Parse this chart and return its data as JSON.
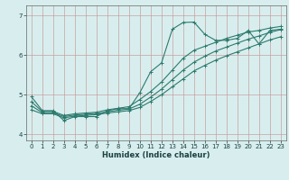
{
  "xlabel": "Humidex (Indice chaleur)",
  "background_color": "#d8eeee",
  "grid_color": "#c8a8a8",
  "line_color": "#2d7a6e",
  "xlim": [
    -0.5,
    23.5
  ],
  "ylim": [
    3.85,
    7.25
  ],
  "yticks": [
    4,
    5,
    6,
    7
  ],
  "xticks": [
    0,
    1,
    2,
    3,
    4,
    5,
    6,
    7,
    8,
    9,
    10,
    11,
    12,
    13,
    14,
    15,
    16,
    17,
    18,
    19,
    20,
    21,
    22,
    23
  ],
  "line1_x": [
    0,
    1,
    2,
    3,
    4,
    5,
    6,
    7,
    8,
    9,
    10,
    11,
    12,
    13,
    14,
    15,
    16,
    17,
    18,
    19,
    20,
    21,
    22,
    23
  ],
  "line1_y": [
    4.95,
    4.6,
    4.6,
    4.35,
    4.45,
    4.45,
    4.45,
    4.6,
    4.65,
    4.65,
    5.05,
    5.58,
    5.8,
    6.65,
    6.82,
    6.83,
    6.52,
    6.37,
    6.37,
    6.42,
    6.62,
    6.28,
    6.62,
    6.65
  ],
  "line2_x": [
    0,
    1,
    2,
    3,
    4,
    5,
    6,
    7,
    8,
    9,
    10,
    11,
    12,
    13,
    14,
    15,
    16,
    17,
    18,
    19,
    20,
    21,
    22,
    23
  ],
  "line2_y": [
    4.82,
    4.58,
    4.58,
    4.48,
    4.52,
    4.54,
    4.56,
    4.62,
    4.66,
    4.7,
    4.88,
    5.08,
    5.32,
    5.62,
    5.92,
    6.12,
    6.22,
    6.32,
    6.42,
    6.5,
    6.58,
    6.62,
    6.68,
    6.72
  ],
  "line3_x": [
    0,
    1,
    2,
    3,
    4,
    5,
    6,
    7,
    8,
    9,
    10,
    11,
    12,
    13,
    14,
    15,
    16,
    17,
    18,
    19,
    20,
    21,
    22,
    23
  ],
  "line3_y": [
    4.72,
    4.55,
    4.55,
    4.45,
    4.49,
    4.51,
    4.53,
    4.57,
    4.61,
    4.64,
    4.76,
    4.94,
    5.14,
    5.38,
    5.62,
    5.82,
    5.97,
    6.1,
    6.2,
    6.3,
    6.4,
    6.48,
    6.57,
    6.64
  ],
  "line4_x": [
    0,
    1,
    2,
    3,
    4,
    5,
    6,
    7,
    8,
    9,
    10,
    11,
    12,
    13,
    14,
    15,
    16,
    17,
    18,
    19,
    20,
    21,
    22,
    23
  ],
  "line4_y": [
    4.62,
    4.52,
    4.52,
    4.42,
    4.46,
    4.48,
    4.5,
    4.54,
    4.57,
    4.6,
    4.68,
    4.83,
    5.0,
    5.2,
    5.4,
    5.6,
    5.74,
    5.87,
    5.98,
    6.08,
    6.18,
    6.28,
    6.38,
    6.46
  ],
  "ylabel_fontsize": 6,
  "xlabel_fontsize": 6,
  "tick_fontsize": 5
}
